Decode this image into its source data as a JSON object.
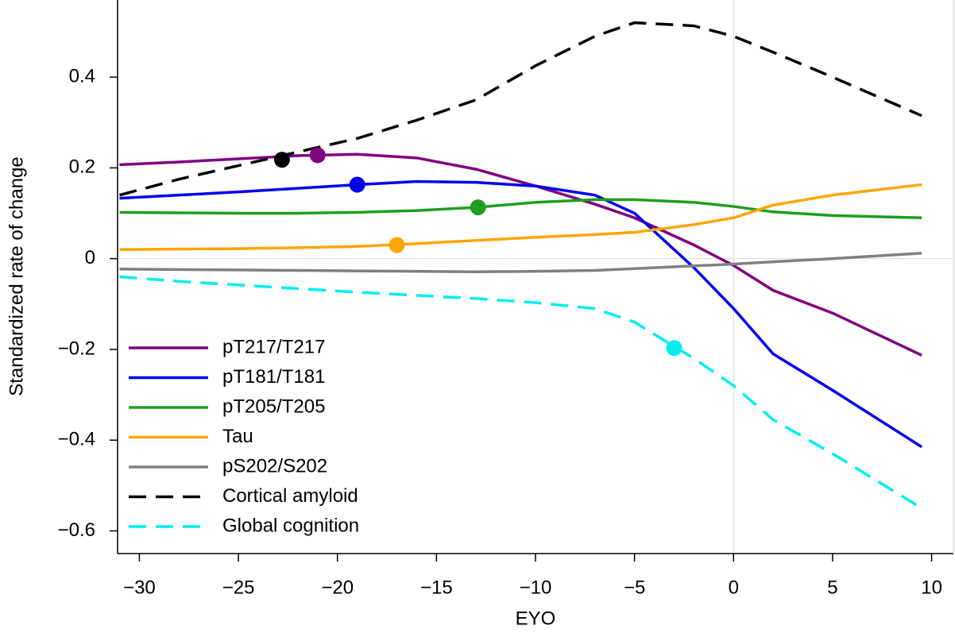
{
  "chart_data": {
    "type": "line",
    "x_label": "EYO",
    "y_label": "Standardized rate of change",
    "x": [
      -31,
      -28,
      -25,
      -22,
      -19,
      -16,
      -13,
      -10,
      -7,
      -5,
      -2,
      0,
      2,
      5,
      9.5
    ],
    "series": [
      {
        "name": "pT217/T217",
        "color": "#800080",
        "dashed": false,
        "values": [
          0.207,
          0.213,
          0.22,
          0.227,
          0.23,
          0.222,
          0.197,
          0.16,
          0.12,
          0.09,
          0.03,
          -0.015,
          -0.07,
          -0.12,
          -0.213
        ],
        "marker": {
          "x": -21,
          "y": 0.228
        }
      },
      {
        "name": "pT181/T181",
        "color": "#0000ee",
        "dashed": false,
        "values": [
          0.133,
          0.14,
          0.147,
          0.155,
          0.163,
          0.17,
          0.168,
          0.16,
          0.14,
          0.1,
          -0.02,
          -0.11,
          -0.21,
          -0.29,
          -0.415
        ],
        "marker": {
          "x": -19,
          "y": 0.163
        }
      },
      {
        "name": "pT205/T205",
        "color": "#1f9e1f",
        "dashed": false,
        "values": [
          0.102,
          0.101,
          0.1,
          0.1,
          0.102,
          0.106,
          0.113,
          0.124,
          0.13,
          0.13,
          0.124,
          0.115,
          0.103,
          0.095,
          0.09
        ],
        "marker": {
          "x": -12.9,
          "y": 0.113
        }
      },
      {
        "name": "Tau",
        "color": "#ffa500",
        "dashed": false,
        "values": [
          0.02,
          0.021,
          0.022,
          0.024,
          0.027,
          0.033,
          0.04,
          0.047,
          0.053,
          0.058,
          0.075,
          0.09,
          0.118,
          0.14,
          0.163
        ],
        "marker": {
          "x": -17,
          "y": 0.03
        }
      },
      {
        "name": "pS202/S202",
        "color": "#808080",
        "dashed": false,
        "values": [
          -0.023,
          -0.024,
          -0.025,
          -0.026,
          -0.027,
          -0.028,
          -0.029,
          -0.028,
          -0.026,
          -0.022,
          -0.016,
          -0.012,
          -0.007,
          0.0,
          0.012
        ]
      },
      {
        "name": "Cortical amyloid",
        "color": "#000000",
        "dashed": true,
        "values": [
          0.14,
          0.175,
          0.205,
          0.235,
          0.265,
          0.305,
          0.35,
          0.425,
          0.49,
          0.52,
          0.513,
          0.49,
          0.455,
          0.4,
          0.315
        ],
        "marker": {
          "x": -22.8,
          "y": 0.218
        }
      },
      {
        "name": "Global cognition",
        "color": "#00eeee",
        "dashed": true,
        "values": [
          -0.04,
          -0.05,
          -0.058,
          -0.066,
          -0.074,
          -0.081,
          -0.088,
          -0.097,
          -0.11,
          -0.14,
          -0.22,
          -0.28,
          -0.355,
          -0.43,
          -0.55
        ],
        "marker": {
          "x": -3,
          "y": -0.197
        }
      }
    ],
    "xlim": [
      -31.1,
      11.1
    ],
    "ylim": [
      -0.65,
      0.57
    ],
    "xticks": [
      {
        "value": -30,
        "label": "−30"
      },
      {
        "value": -25,
        "label": "−25"
      },
      {
        "value": -20,
        "label": "−20"
      },
      {
        "value": -15,
        "label": "−15"
      },
      {
        "value": -10,
        "label": "−10"
      },
      {
        "value": -5,
        "label": "−5"
      },
      0,
      5,
      10
    ],
    "yticks": [
      {
        "value": -0.6,
        "label": "−0.6"
      },
      {
        "value": -0.4,
        "label": "−0.4"
      },
      {
        "value": -0.2,
        "label": "−0.2"
      },
      0,
      0.2,
      0.4
    ],
    "reference_lines": {
      "x": [
        0
      ],
      "y": [
        0
      ]
    },
    "legend": "lower left"
  }
}
